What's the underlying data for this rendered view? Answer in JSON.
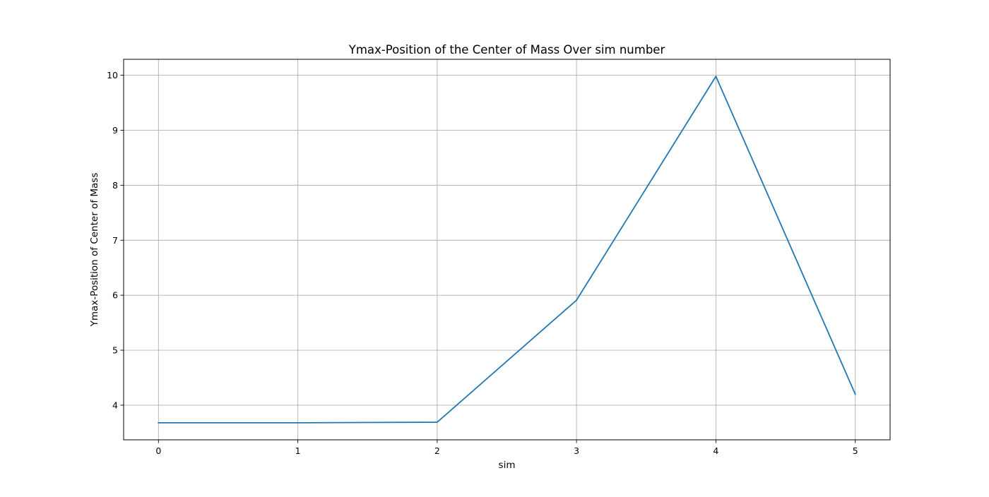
{
  "chart_data": {
    "type": "line",
    "title": "Ymax-Position of the Center of Mass Over sim number",
    "xlabel": "sim",
    "ylabel": "Ymax-Position of Center of Mass",
    "x": [
      0,
      1,
      2,
      3,
      4,
      5
    ],
    "series": [
      {
        "values": [
          3.68,
          3.68,
          3.69,
          5.91,
          9.98,
          4.2
        ],
        "color": "#1f77b4"
      }
    ],
    "xticks": [
      "0",
      "1",
      "2",
      "3",
      "4",
      "5"
    ],
    "yticks": [
      "4",
      "5",
      "6",
      "7",
      "8",
      "9",
      "10"
    ],
    "xlim": [
      -0.25,
      5.25
    ],
    "ylim": [
      3.37,
      10.29
    ],
    "grid": true,
    "grid_color": "#b0b0b0"
  }
}
